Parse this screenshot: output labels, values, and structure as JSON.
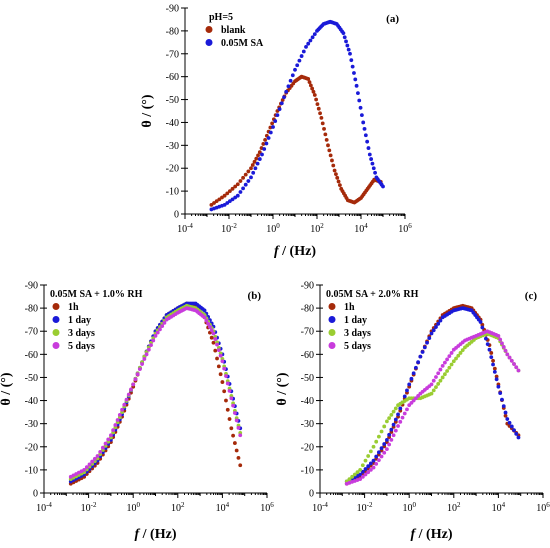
{
  "chart_data": [
    {
      "type": "scatter",
      "tag": "(a)",
      "legend_title": "pH=5",
      "legend_position": "top-left",
      "xlabel": "f / (Hz)",
      "ylabel": "θ / (°)",
      "x_scale": "log",
      "xlim_exp": [
        -4,
        6
      ],
      "x_tick_labels": [
        "10-4",
        "10-2",
        "100",
        "102",
        "104",
        "106"
      ],
      "ylim": [
        0,
        -90
      ],
      "y_ticks": [
        0,
        -10,
        -20,
        -30,
        -40,
        -50,
        -60,
        -70,
        -80,
        -90
      ],
      "series": [
        {
          "name": "blank",
          "color": "#a52a0a",
          "points": [
            [
              -2.8,
              -4
            ],
            [
              -2.2,
              -8
            ],
            [
              -1.6,
              -13
            ],
            [
              -1.0,
              -20
            ],
            [
              -0.6,
              -27
            ],
            [
              -0.2,
              -36
            ],
            [
              0.2,
              -45
            ],
            [
              0.6,
              -53
            ],
            [
              1.0,
              -58
            ],
            [
              1.3,
              -60
            ],
            [
              1.6,
              -59
            ],
            [
              1.9,
              -52
            ],
            [
              2.2,
              -42
            ],
            [
              2.5,
              -30
            ],
            [
              2.8,
              -19
            ],
            [
              3.1,
              -11
            ],
            [
              3.4,
              -6
            ],
            [
              3.7,
              -5
            ],
            [
              4.0,
              -7
            ],
            [
              4.3,
              -11
            ],
            [
              4.6,
              -15
            ],
            [
              4.9,
              -14
            ]
          ]
        },
        {
          "name": "0.05M SA",
          "color": "#1a1ad8",
          "points": [
            [
              -2.8,
              -2
            ],
            [
              -2.2,
              -4
            ],
            [
              -1.6,
              -8
            ],
            [
              -1.0,
              -16
            ],
            [
              -0.5,
              -26
            ],
            [
              0.0,
              -38
            ],
            [
              0.5,
              -51
            ],
            [
              1.0,
              -63
            ],
            [
              1.5,
              -73
            ],
            [
              2.0,
              -80
            ],
            [
              2.3,
              -83
            ],
            [
              2.6,
              -84
            ],
            [
              2.9,
              -83
            ],
            [
              3.2,
              -79
            ],
            [
              3.5,
              -70
            ],
            [
              3.8,
              -56
            ],
            [
              4.1,
              -40
            ],
            [
              4.4,
              -26
            ],
            [
              4.7,
              -16
            ],
            [
              5.0,
              -12
            ]
          ]
        }
      ]
    },
    {
      "type": "scatter",
      "tag": "(b)",
      "legend_title": "0.05M SA + 1.0% RH",
      "legend_position": "top-left",
      "xlabel": "f / (Hz)",
      "ylabel": "θ / (°)",
      "x_scale": "log",
      "xlim_exp": [
        -4,
        6
      ],
      "x_tick_labels": [
        "10-4",
        "10-2",
        "100",
        "102",
        "104",
        "106"
      ],
      "ylim": [
        0,
        -90
      ],
      "y_ticks": [
        0,
        -10,
        -20,
        -30,
        -40,
        -50,
        -60,
        -70,
        -80,
        -90
      ],
      "series": [
        {
          "name": "1h",
          "color": "#a52a0a",
          "points": [
            [
              -2.8,
              -4
            ],
            [
              -2.2,
              -7
            ],
            [
              -1.6,
              -13
            ],
            [
              -1.0,
              -22
            ],
            [
              -0.5,
              -33
            ],
            [
              0.0,
              -46
            ],
            [
              0.5,
              -59
            ],
            [
              1.0,
              -70
            ],
            [
              1.5,
              -77
            ],
            [
              2.0,
              -80
            ],
            [
              2.4,
              -82
            ],
            [
              2.8,
              -81
            ],
            [
              3.2,
              -76
            ],
            [
              3.6,
              -65
            ],
            [
              4.0,
              -48
            ],
            [
              4.4,
              -28
            ],
            [
              4.8,
              -12
            ]
          ]
        },
        {
          "name": "1 day",
          "color": "#1a1ad8",
          "points": [
            [
              -2.8,
              -5
            ],
            [
              -2.2,
              -8
            ],
            [
              -1.6,
              -14
            ],
            [
              -1.0,
              -23
            ],
            [
              -0.5,
              -34
            ],
            [
              0.0,
              -47
            ],
            [
              0.5,
              -59
            ],
            [
              1.0,
              -70
            ],
            [
              1.5,
              -77
            ],
            [
              2.0,
              -80
            ],
            [
              2.4,
              -82
            ],
            [
              2.8,
              -82
            ],
            [
              3.2,
              -79
            ],
            [
              3.6,
              -72
            ],
            [
              4.0,
              -60
            ],
            [
              4.4,
              -44
            ],
            [
              4.8,
              -28
            ]
          ]
        },
        {
          "name": "3 days",
          "color": "#9acd32",
          "points": [
            [
              -2.8,
              -6
            ],
            [
              -2.2,
              -9
            ],
            [
              -1.6,
              -15
            ],
            [
              -1.0,
              -24
            ],
            [
              -0.5,
              -35
            ],
            [
              0.0,
              -47
            ],
            [
              0.5,
              -59
            ],
            [
              1.0,
              -69
            ],
            [
              1.5,
              -76
            ],
            [
              2.0,
              -79
            ],
            [
              2.4,
              -81
            ],
            [
              2.8,
              -80
            ],
            [
              3.2,
              -77
            ],
            [
              3.6,
              -70
            ],
            [
              4.0,
              -58
            ],
            [
              4.4,
              -42
            ],
            [
              4.8,
              -26
            ]
          ]
        },
        {
          "name": "5 days",
          "color": "#c83cdc",
          "points": [
            [
              -2.8,
              -7
            ],
            [
              -2.2,
              -10
            ],
            [
              -1.6,
              -16
            ],
            [
              -1.0,
              -25
            ],
            [
              -0.5,
              -36
            ],
            [
              0.0,
              -47
            ],
            [
              0.5,
              -58
            ],
            [
              1.0,
              -68
            ],
            [
              1.5,
              -75
            ],
            [
              2.0,
              -78
            ],
            [
              2.4,
              -80
            ],
            [
              2.8,
              -79
            ],
            [
              3.2,
              -76
            ],
            [
              3.6,
              -69
            ],
            [
              4.0,
              -57
            ],
            [
              4.4,
              -41
            ],
            [
              4.8,
              -25
            ]
          ]
        }
      ]
    },
    {
      "type": "scatter",
      "tag": "(c)",
      "legend_title": "0.05M SA + 2.0% RH",
      "legend_position": "top-left",
      "xlabel": "f / (Hz)",
      "ylabel": "θ / (°)",
      "x_scale": "log",
      "xlim_exp": [
        -4,
        6
      ],
      "x_tick_labels": [
        "10-4",
        "10-2",
        "100",
        "102",
        "104",
        "106"
      ],
      "ylim": [
        0,
        -90
      ],
      "y_ticks": [
        0,
        -10,
        -20,
        -30,
        -40,
        -50,
        -60,
        -70,
        -80,
        -90
      ],
      "series": [
        {
          "name": "1h",
          "color": "#a52a0a",
          "points": [
            [
              -2.8,
              -4
            ],
            [
              -2.2,
              -7
            ],
            [
              -1.6,
              -13
            ],
            [
              -1.0,
              -22
            ],
            [
              -0.5,
              -33
            ],
            [
              0.0,
              -46
            ],
            [
              0.5,
              -59
            ],
            [
              1.0,
              -70
            ],
            [
              1.5,
              -77
            ],
            [
              2.0,
              -80
            ],
            [
              2.4,
              -81
            ],
            [
              2.8,
              -80
            ],
            [
              3.2,
              -75
            ],
            [
              3.6,
              -64
            ],
            [
              4.0,
              -47
            ],
            [
              4.4,
              -30
            ],
            [
              4.9,
              -25
            ]
          ]
        },
        {
          "name": "1 day",
          "color": "#1a1ad8",
          "points": [
            [
              -2.8,
              -5
            ],
            [
              -2.2,
              -8
            ],
            [
              -1.6,
              -14
            ],
            [
              -1.0,
              -23
            ],
            [
              -0.5,
              -34
            ],
            [
              0.0,
              -47
            ],
            [
              0.5,
              -59
            ],
            [
              1.0,
              -69
            ],
            [
              1.5,
              -76
            ],
            [
              2.0,
              -79
            ],
            [
              2.4,
              -80
            ],
            [
              2.8,
              -79
            ],
            [
              3.2,
              -74
            ],
            [
              3.6,
              -62
            ],
            [
              4.0,
              -46
            ],
            [
              4.4,
              -32
            ],
            [
              4.9,
              -24
            ]
          ]
        },
        {
          "name": "3 days",
          "color": "#9acd32",
          "points": [
            [
              -2.8,
              -5
            ],
            [
              -2.2,
              -10
            ],
            [
              -1.6,
              -20
            ],
            [
              -1.0,
              -31
            ],
            [
              -0.5,
              -38
            ],
            [
              0.0,
              -41
            ],
            [
              0.5,
              -41
            ],
            [
              1.0,
              -43
            ],
            [
              1.5,
              -50
            ],
            [
              2.0,
              -57
            ],
            [
              2.5,
              -63
            ],
            [
              3.0,
              -67
            ],
            [
              3.5,
              -69
            ],
            [
              4.0,
              -67
            ],
            [
              4.4,
              -60
            ],
            [
              4.9,
              -53
            ]
          ]
        },
        {
          "name": "5 days",
          "color": "#c83cdc",
          "points": [
            [
              -2.8,
              -4
            ],
            [
              -2.2,
              -6
            ],
            [
              -1.6,
              -11
            ],
            [
              -1.0,
              -19
            ],
            [
              -0.5,
              -29
            ],
            [
              0.0,
              -38
            ],
            [
              0.5,
              -43
            ],
            [
              1.0,
              -47
            ],
            [
              1.5,
              -55
            ],
            [
              2.0,
              -62
            ],
            [
              2.5,
              -66
            ],
            [
              3.0,
              -68
            ],
            [
              3.5,
              -70
            ],
            [
              4.0,
              -68
            ],
            [
              4.4,
              -60
            ],
            [
              4.9,
              -53
            ]
          ]
        }
      ]
    }
  ]
}
